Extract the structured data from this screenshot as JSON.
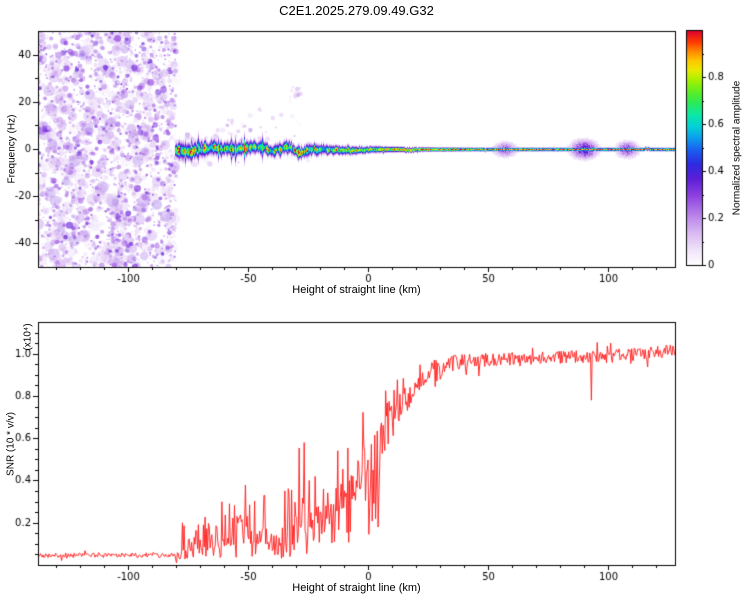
{
  "title": "C2E1.2025.279.09.49.G32",
  "background": "#ffffff",
  "chart_data": [
    {
      "type": "heatmap",
      "panel": "spectrogram",
      "xlabel": "Height of straight line (km)",
      "ylabel": "Frequency (Hz)",
      "xlim": [
        -137.5,
        128
      ],
      "ylim": [
        -50,
        50
      ],
      "xticks": {
        "values": [
          -100,
          -50,
          0,
          50,
          100
        ],
        "labels": [
          "-100",
          "-50",
          "0",
          "50",
          "100"
        ]
      },
      "yticks": {
        "values": [
          -40,
          -20,
          0,
          20,
          40
        ],
        "labels": [
          "-40",
          "-20",
          "0",
          "20",
          "40"
        ]
      },
      "x_minor_step": 10,
      "y_minor_step": 10,
      "grid": false,
      "colorbar": {
        "label": "Normalized spectral amplitude",
        "range": [
          0,
          1
        ],
        "ticks": {
          "values": [
            0,
            0.2,
            0.4,
            0.6,
            0.8
          ],
          "labels": [
            "0",
            "0.2",
            "0.4",
            "0.6",
            "0.8"
          ]
        },
        "minor_step": 0.1,
        "stops": [
          [
            0.0,
            "#ffffff"
          ],
          [
            0.06,
            "#f2e7fa"
          ],
          [
            0.14,
            "#d9b8f2"
          ],
          [
            0.22,
            "#b57ee8"
          ],
          [
            0.3,
            "#8b3fe0"
          ],
          [
            0.37,
            "#5c1fd6"
          ],
          [
            0.43,
            "#2e2ae0"
          ],
          [
            0.49,
            "#1a5ef0"
          ],
          [
            0.54,
            "#0d9bef"
          ],
          [
            0.59,
            "#04cfd8"
          ],
          [
            0.64,
            "#0ce8a8"
          ],
          [
            0.69,
            "#2aea5a"
          ],
          [
            0.74,
            "#5fee22"
          ],
          [
            0.79,
            "#a8f000"
          ],
          [
            0.83,
            "#e8ea00"
          ],
          [
            0.87,
            "#ffc800"
          ],
          [
            0.91,
            "#ff8a00"
          ],
          [
            0.95,
            "#ff3c00"
          ],
          [
            1.0,
            "#dc0030"
          ]
        ]
      },
      "noise_region": {
        "x_min": -137.5,
        "x_max": -80,
        "blob_count": 2600,
        "seed": 7
      },
      "sparse_speckles": {
        "x_min": -80,
        "x_max": -24,
        "count": 70,
        "seed": 11,
        "cluster": {
          "x": -30,
          "hz": 24,
          "count": 10
        }
      },
      "band": {
        "center_hz": 0,
        "x_start": -80.5,
        "profile": [
          [
            -80,
            1.7,
            0.95
          ],
          [
            -60,
            1.5,
            0.95
          ],
          [
            -40,
            1.35,
            0.93
          ],
          [
            -20,
            1.1,
            0.9
          ],
          [
            0,
            0.85,
            0.9
          ],
          [
            20,
            0.6,
            0.92
          ],
          [
            40,
            0.5,
            0.92
          ],
          [
            128,
            0.45,
            0.92
          ]
        ],
        "glows": [
          {
            "x": -78,
            "sigma_hz": 2.2,
            "amp": 0.55,
            "spread": 1.5
          },
          {
            "x": 57,
            "sigma_hz": 2.0,
            "amp": 0.28,
            "spread": 3.0
          },
          {
            "x": 90,
            "sigma_hz": 2.4,
            "amp": 0.42,
            "spread": 3.5
          },
          {
            "x": 108,
            "sigma_hz": 2.2,
            "amp": 0.3,
            "spread": 3.0
          }
        ],
        "seed": 3
      }
    },
    {
      "type": "line",
      "panel": "snr",
      "xlabel": "Height of straight line (km)",
      "ylabel": "SNR (10 * v/v)",
      "scale_label": "(x10⁴)",
      "xlim": [
        -137.5,
        128
      ],
      "ylim": [
        0,
        1.15
      ],
      "xticks": {
        "values": [
          -100,
          -50,
          0,
          50,
          100
        ],
        "labels": [
          "-100",
          "-50",
          "0",
          "50",
          "100"
        ]
      },
      "yticks": {
        "values": [
          0.2,
          0.4,
          0.6,
          0.8,
          1.0
        ],
        "labels": [
          "0.2",
          "0.4",
          "0.6",
          "0.8",
          "1.0"
        ]
      },
      "x_minor_step": 10,
      "y_minor_step": 0.05,
      "color": "#ff1a1a",
      "seed": 21,
      "sample_step_km": 0.35,
      "envelope": [
        [
          -137.5,
          0.045,
          0.012
        ],
        [
          -80.5,
          0.048,
          0.012
        ],
        [
          -78,
          0.07,
          0.2
        ],
        [
          -70,
          0.07,
          0.24
        ],
        [
          -62,
          0.08,
          0.28
        ],
        [
          -55,
          0.1,
          0.4
        ],
        [
          -47,
          0.1,
          0.42
        ],
        [
          -42,
          0.1,
          0.34
        ],
        [
          -37,
          0.09,
          0.16
        ],
        [
          -32,
          0.11,
          0.4
        ],
        [
          -28,
          0.13,
          0.58
        ],
        [
          -24,
          0.16,
          0.38
        ],
        [
          -19,
          0.2,
          0.32
        ],
        [
          -14,
          0.24,
          0.32
        ],
        [
          -9,
          0.28,
          0.34
        ],
        [
          -4,
          0.34,
          0.38
        ],
        [
          1,
          0.42,
          0.4
        ],
        [
          6,
          0.52,
          0.36
        ],
        [
          11,
          0.62,
          0.3
        ],
        [
          16,
          0.72,
          0.24
        ],
        [
          21,
          0.82,
          0.16
        ],
        [
          26,
          0.89,
          0.11
        ],
        [
          31,
          0.945,
          0.05
        ],
        [
          40,
          0.965,
          0.035
        ],
        [
          60,
          0.975,
          0.03
        ],
        [
          85,
          0.985,
          0.03
        ],
        [
          110,
          0.995,
          0.03
        ],
        [
          128,
          1.015,
          0.03
        ]
      ],
      "dip_events": [
        {
          "x": 93,
          "value": 0.78
        }
      ]
    }
  ]
}
